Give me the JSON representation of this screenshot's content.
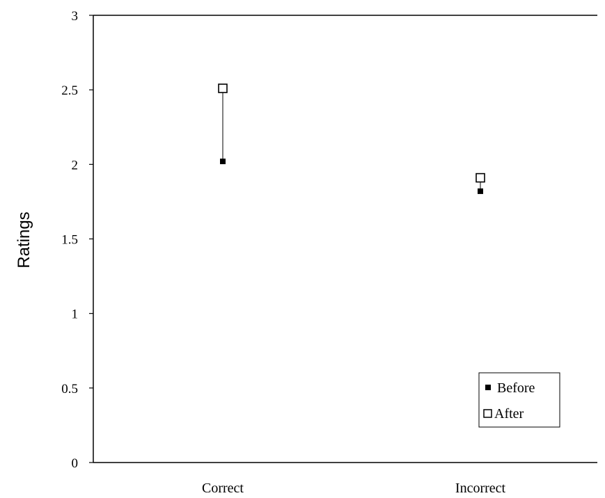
{
  "chart_data": {
    "type": "scatter",
    "categories": [
      "Correct",
      "Incorrect"
    ],
    "series": [
      {
        "name": "Before",
        "values": [
          2.02,
          1.82
        ],
        "marker": "filled-square",
        "color": "#000000"
      },
      {
        "name": "After",
        "values": [
          2.51,
          1.91
        ],
        "marker": "open-square",
        "color": "#000000"
      }
    ],
    "connectors": true,
    "title": "",
    "xlabel": "",
    "ylabel": "Ratings",
    "ylim": [
      0,
      3
    ],
    "yticks": [
      "0",
      "0.5",
      "1",
      "1.5",
      "2",
      "2.5",
      "3"
    ],
    "grid": false,
    "legend_position": "bottom-right"
  }
}
